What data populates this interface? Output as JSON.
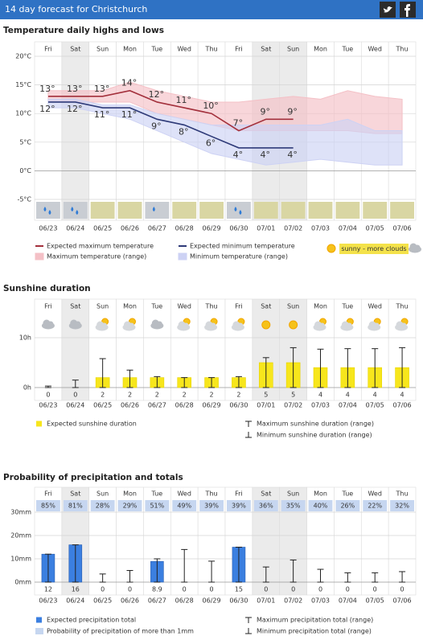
{
  "header": {
    "title": "14 day forecast for Christchurch"
  },
  "chart_data": [
    {
      "type": "line",
      "title": "Temperature daily highs and lows",
      "weekdays": [
        "Fri",
        "Sat",
        "Sun",
        "Mon",
        "Tue",
        "Wed",
        "Thu",
        "Fri",
        "Sat",
        "Sun",
        "Mon",
        "Tue",
        "Wed",
        "Thu"
      ],
      "categories": [
        "06/23",
        "06/24",
        "06/25",
        "06/26",
        "06/27",
        "06/28",
        "06/29",
        "06/30",
        "07/01",
        "07/02",
        "07/03",
        "07/04",
        "07/05",
        "07/06"
      ],
      "ylim": [
        -5,
        20
      ],
      "yticks": [
        {
          "value": -5,
          "label": "-5°C"
        },
        {
          "value": 0,
          "label": "0°C"
        },
        {
          "value": 5,
          "label": "5°C"
        },
        {
          "value": 10,
          "label": "10°C"
        },
        {
          "value": 15,
          "label": "15°C"
        },
        {
          "value": 20,
          "label": "20°C"
        }
      ],
      "series": [
        {
          "name": "Expected maximum temperature",
          "color": "#a3303c",
          "values": [
            13,
            13,
            13,
            14,
            12,
            11,
            10,
            7,
            9,
            9,
            null,
            null,
            null,
            null
          ],
          "value_labels": [
            "13°",
            "13°",
            "13°",
            "14°",
            "12°",
            "11°",
            "10°",
            "7°",
            "9°",
            "9°",
            null,
            null,
            null,
            null
          ]
        },
        {
          "name": "Expected minimum temperature",
          "color": "#2e3a78",
          "values": [
            12,
            12,
            11,
            11,
            9,
            8,
            6,
            4,
            4,
            4,
            null,
            null,
            null,
            null
          ],
          "value_labels": [
            "12°",
            "12°",
            "11°",
            "11°",
            "9°",
            "8°",
            "6°",
            "4°",
            "4°",
            "4°",
            null,
            null,
            null,
            null
          ]
        },
        {
          "name": "Maximum temperature (range)",
          "type": "band",
          "color": "#f4c0c6",
          "high": [
            14,
            14,
            14,
            15.5,
            14,
            13,
            12,
            12,
            12.5,
            13,
            12.5,
            14,
            13,
            12.5
          ],
          "low": [
            12,
            12,
            12,
            12,
            10,
            9,
            8,
            7,
            7,
            7,
            7,
            7,
            6.5,
            6.5
          ]
        },
        {
          "name": "Minimum temperature (range)",
          "type": "band",
          "color": "#cdd2f4",
          "high": [
            12.5,
            12.5,
            11.5,
            11.5,
            10,
            9,
            8,
            8,
            8,
            8,
            8,
            9,
            7,
            7
          ],
          "low": [
            11,
            11,
            10,
            9,
            7,
            5,
            3,
            2,
            1,
            1.5,
            2,
            1.5,
            1,
            1
          ]
        }
      ],
      "legend_note": "sunny - more clouds"
    },
    {
      "type": "bar",
      "title": "Sunshine duration",
      "weekdays": [
        "Fri",
        "Sat",
        "Sun",
        "Mon",
        "Tue",
        "Wed",
        "Thu",
        "Fri",
        "Sat",
        "Sun",
        "Mon",
        "Tue",
        "Wed",
        "Thu"
      ],
      "categories": [
        "06/23",
        "06/24",
        "06/25",
        "06/26",
        "06/27",
        "06/28",
        "06/29",
        "06/30",
        "07/01",
        "07/02",
        "07/03",
        "07/04",
        "07/05",
        "07/06"
      ],
      "ylim": [
        0,
        13
      ],
      "yticks": [
        {
          "value": 0,
          "label": "0h"
        },
        {
          "value": 10,
          "label": "10h"
        }
      ],
      "series": [
        {
          "name": "Expected sunshine duration",
          "color": "#f7e61c",
          "values": [
            0,
            0,
            2,
            2,
            2,
            2,
            2,
            2,
            5,
            5,
            4,
            4,
            4,
            4
          ]
        },
        {
          "name": "Maximum sunshine duration (range)",
          "values": [
            0.3,
            1.5,
            5.8,
            3.5,
            2.2,
            2,
            2,
            2.2,
            6,
            8,
            7.7,
            7.8,
            7.8,
            8
          ]
        },
        {
          "name": "Minimum sunshine duration (range)",
          "values": [
            0,
            0,
            0,
            0,
            0,
            0,
            0,
            0,
            0,
            0,
            0,
            0,
            0,
            0
          ]
        }
      ]
    },
    {
      "type": "bar",
      "title": "Probability of precipitation and totals",
      "weekdays": [
        "Fri",
        "Sat",
        "Sun",
        "Mon",
        "Tue",
        "Wed",
        "Thu",
        "Fri",
        "Sat",
        "Sun",
        "Mon",
        "Tue",
        "Wed",
        "Thu"
      ],
      "categories": [
        "06/23",
        "06/24",
        "06/25",
        "06/26",
        "06/27",
        "06/28",
        "06/29",
        "06/30",
        "07/01",
        "07/02",
        "07/03",
        "07/04",
        "07/05",
        "07/06"
      ],
      "ylim": [
        0,
        30
      ],
      "yticks": [
        {
          "value": 0,
          "label": "0mm"
        },
        {
          "value": 10,
          "label": "10mm"
        },
        {
          "value": 20,
          "label": "20mm"
        },
        {
          "value": 30,
          "label": "30mm"
        }
      ],
      "series": [
        {
          "name": "Expected precipitation total",
          "color": "#3b7fe0",
          "values": [
            12,
            16,
            0,
            0,
            8.9,
            0,
            0,
            15,
            0,
            0,
            0,
            0,
            0,
            0
          ]
        },
        {
          "name": "Maximum precipitation total (range)",
          "values": [
            12,
            16,
            3.5,
            5,
            10,
            14,
            9,
            15,
            6.5,
            9.5,
            5.5,
            4,
            4,
            4.5
          ]
        },
        {
          "name": "Minimum precipitation total (range)",
          "values": [
            0,
            0,
            0,
            0,
            0,
            0,
            0,
            0,
            0,
            0,
            0,
            0,
            0,
            0
          ]
        }
      ],
      "probability": {
        "name": "Probability of precipitation of more than 1mm",
        "color": "#c6d6f0",
        "values": [
          85,
          81,
          28,
          29,
          51,
          49,
          39,
          39,
          36,
          35,
          40,
          26,
          22,
          32
        ],
        "value_labels": [
          "85%",
          "81%",
          "28%",
          "29%",
          "51%",
          "49%",
          "39%",
          "39%",
          "36%",
          "35%",
          "40%",
          "26%",
          "22%",
          "32%"
        ]
      }
    }
  ]
}
